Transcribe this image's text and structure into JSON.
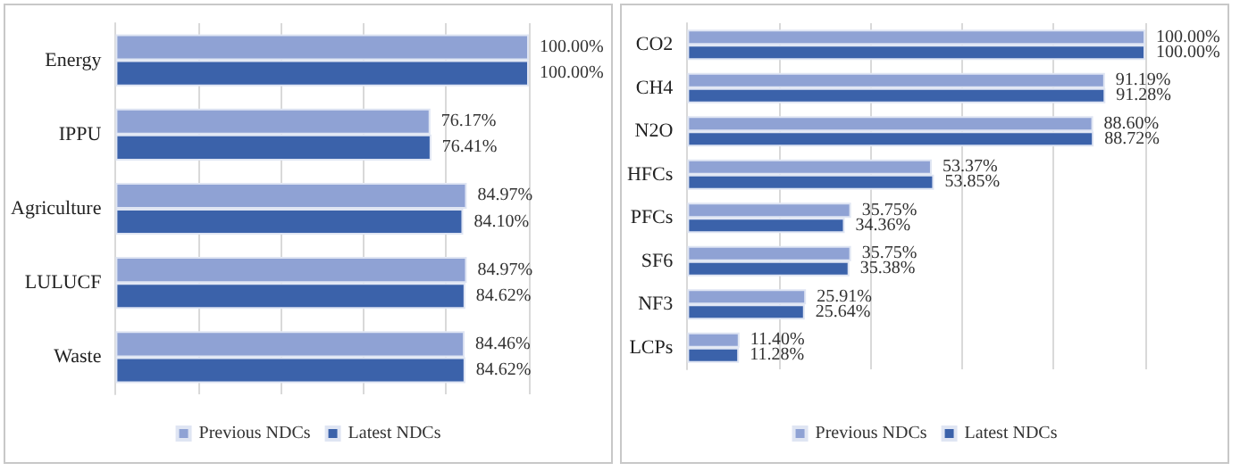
{
  "chart_data": [
    {
      "type": "bar",
      "orientation": "horizontal",
      "categories": [
        "Energy",
        "IPPU",
        "Agriculture",
        "LULUCF",
        "Waste"
      ],
      "series": [
        {
          "name": "Previous NDCs",
          "color": "#8fa2d4",
          "values": [
            100,
            76.17,
            84.97,
            84.97,
            84.46
          ],
          "value_labels": [
            "100.00%",
            "76.17%",
            "84.97%",
            "84.97%",
            "84.46%"
          ]
        },
        {
          "name": "Latest NDCs",
          "color": "#3b62aa",
          "values": [
            100,
            76.41,
            84.1,
            84.62,
            84.62
          ],
          "value_labels": [
            "100.00%",
            "76.41%",
            "84.10%",
            "84.62%",
            "84.62%"
          ]
        }
      ],
      "xlim": [
        0,
        100
      ],
      "xticks": [
        {
          "value": 0,
          "label": null
        },
        {
          "value": 20,
          "label": null
        },
        {
          "value": 40,
          "label": null
        },
        {
          "value": 60,
          "label": null
        },
        {
          "value": 80,
          "label": null
        },
        {
          "value": 100,
          "label": null
        }
      ],
      "tick_labels": "y",
      "grid": "x",
      "legend": "bottom"
    },
    {
      "type": "bar",
      "orientation": "horizontal",
      "categories": [
        "CO2",
        "CH4",
        "N2O",
        "HFCs",
        "PFCs",
        "SF6",
        "NF3",
        "LCPs"
      ],
      "series": [
        {
          "name": "Previous NDCs",
          "color": "#8fa2d4",
          "values": [
            100,
            91.19,
            88.6,
            53.37,
            35.75,
            35.75,
            25.91,
            11.4
          ],
          "value_labels": [
            "100.00%",
            "91.19%",
            "88.60%",
            "53.37%",
            "35.75%",
            "35.75%",
            "25.91%",
            "11.40%"
          ]
        },
        {
          "name": "Latest NDCs",
          "color": "#3b62aa",
          "values": [
            100,
            91.28,
            88.72,
            53.85,
            34.36,
            35.38,
            25.64,
            11.28
          ],
          "value_labels": [
            "100.00%",
            "91.28%",
            "88.72%",
            "53.85%",
            "34.36%",
            "35.38%",
            "25.64%",
            "11.28%"
          ]
        }
      ],
      "xlim": [
        0,
        100
      ],
      "xticks": [
        {
          "value": 0,
          "label": null
        },
        {
          "value": 20,
          "label": null
        },
        {
          "value": 40,
          "label": null
        },
        {
          "value": 60,
          "label": null
        },
        {
          "value": 80,
          "label": null
        },
        {
          "value": 100,
          "label": null
        }
      ],
      "tick_labels": "y",
      "grid": "x",
      "legend": "bottom"
    }
  ]
}
